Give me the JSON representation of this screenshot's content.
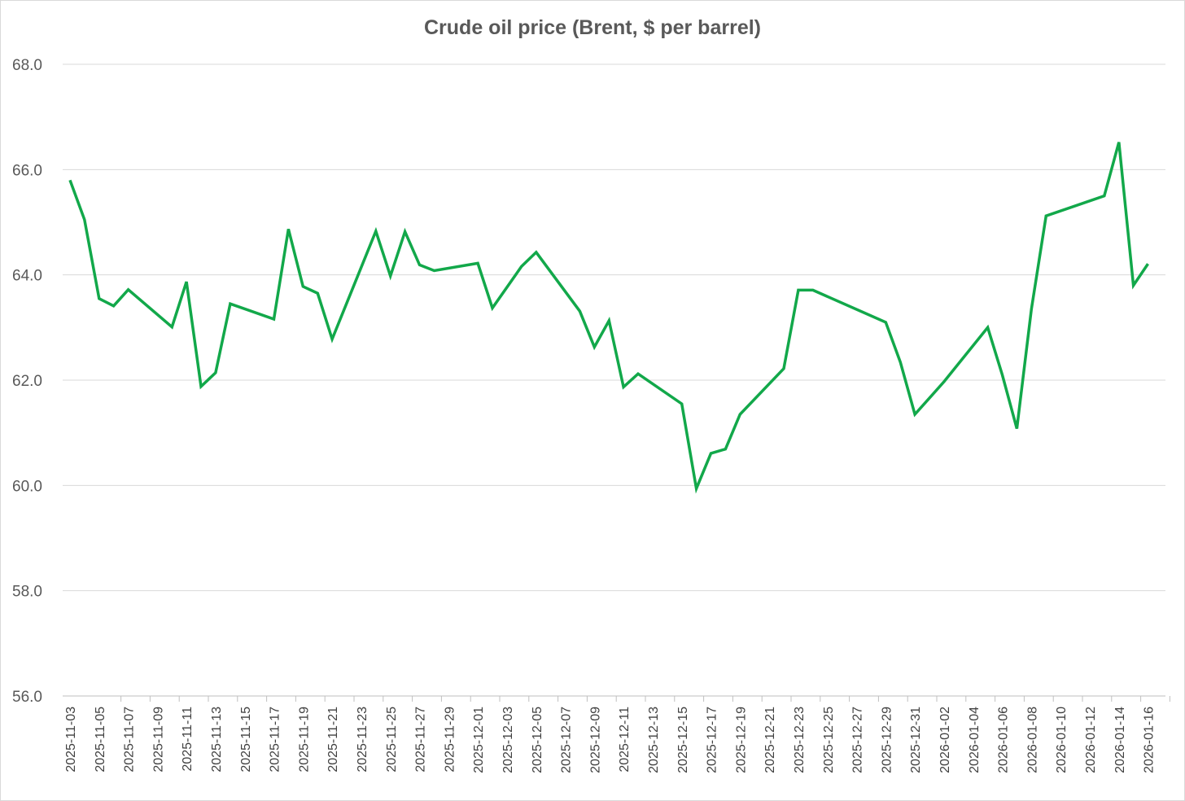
{
  "chart_data": {
    "type": "line",
    "title": "Crude oil price (Brent, $ per barrel)",
    "xlabel": "",
    "ylabel": "",
    "ylim": [
      56.0,
      68.0
    ],
    "y_ticks": [
      "56.0",
      "58.0",
      "60.0",
      "62.0",
      "64.0",
      "66.0",
      "68.0"
    ],
    "x_tick_labels": [
      "2025-11-03",
      "2025-11-05",
      "2025-11-07",
      "2025-11-09",
      "2025-11-11",
      "2025-11-13",
      "2025-11-15",
      "2025-11-17",
      "2025-11-19",
      "2025-11-21",
      "2025-11-23",
      "2025-11-25",
      "2025-11-27",
      "2025-11-29",
      "2025-12-01",
      "2025-12-03",
      "2025-12-05",
      "2025-12-07",
      "2025-12-09",
      "2025-12-11",
      "2025-12-13",
      "2025-12-15",
      "2025-12-17",
      "2025-12-19",
      "2025-12-21",
      "2025-12-23",
      "2025-12-25",
      "2025-12-27",
      "2025-12-29",
      "2025-12-31",
      "2026-01-02",
      "2026-01-04",
      "2026-01-06",
      "2026-01-08",
      "2026-01-10",
      "2026-01-12",
      "2026-01-14",
      "2026-01-16"
    ],
    "grid": true,
    "legend": "none",
    "series": [
      {
        "color": "#12a84a",
        "points": [
          {
            "x": "2025-11-03",
            "y": 65.8
          },
          {
            "x": "2025-11-04",
            "y": 65.05
          },
          {
            "x": "2025-11-05",
            "y": 63.55
          },
          {
            "x": "2025-11-06",
            "y": 63.41
          },
          {
            "x": "2025-11-07",
            "y": 63.72
          },
          {
            "x": "2025-11-10",
            "y": 63.01
          },
          {
            "x": "2025-11-11",
            "y": 63.87
          },
          {
            "x": "2025-11-12",
            "y": 61.88
          },
          {
            "x": "2025-11-13",
            "y": 62.14
          },
          {
            "x": "2025-11-14",
            "y": 63.45
          },
          {
            "x": "2025-11-17",
            "y": 63.16
          },
          {
            "x": "2025-11-18",
            "y": 64.87
          },
          {
            "x": "2025-11-19",
            "y": 63.78
          },
          {
            "x": "2025-11-20",
            "y": 63.65
          },
          {
            "x": "2025-11-21",
            "y": 62.78
          },
          {
            "x": "2025-11-24",
            "y": 64.83
          },
          {
            "x": "2025-11-25",
            "y": 63.98
          },
          {
            "x": "2025-11-26",
            "y": 64.82
          },
          {
            "x": "2025-11-27",
            "y": 64.19
          },
          {
            "x": "2025-11-28",
            "y": 64.08
          },
          {
            "x": "2025-12-01",
            "y": 64.22
          },
          {
            "x": "2025-12-02",
            "y": 63.37
          },
          {
            "x": "2025-12-04",
            "y": 64.16
          },
          {
            "x": "2025-12-05",
            "y": 64.43
          },
          {
            "x": "2025-12-08",
            "y": 63.31
          },
          {
            "x": "2025-12-09",
            "y": 62.63
          },
          {
            "x": "2025-12-10",
            "y": 63.13
          },
          {
            "x": "2025-12-11",
            "y": 61.87
          },
          {
            "x": "2025-12-12",
            "y": 62.12
          },
          {
            "x": "2025-12-15",
            "y": 61.55
          },
          {
            "x": "2025-12-16",
            "y": 59.94
          },
          {
            "x": "2025-12-17",
            "y": 60.61
          },
          {
            "x": "2025-12-18",
            "y": 60.69
          },
          {
            "x": "2025-12-19",
            "y": 61.35
          },
          {
            "x": "2025-12-22",
            "y": 62.22
          },
          {
            "x": "2025-12-23",
            "y": 63.71
          },
          {
            "x": "2025-12-24",
            "y": 63.71
          },
          {
            "x": "2025-12-29",
            "y": 63.1
          },
          {
            "x": "2025-12-30",
            "y": 62.34
          },
          {
            "x": "2025-12-31",
            "y": 61.35
          },
          {
            "x": "2026-01-02",
            "y": 61.97
          },
          {
            "x": "2026-01-05",
            "y": 63.0
          },
          {
            "x": "2026-01-06",
            "y": 62.1
          },
          {
            "x": "2026-01-07",
            "y": 61.08
          },
          {
            "x": "2026-01-08",
            "y": 63.35
          },
          {
            "x": "2026-01-09",
            "y": 65.12
          },
          {
            "x": "2026-01-13",
            "y": 65.5
          },
          {
            "x": "2026-01-14",
            "y": 66.52
          },
          {
            "x": "2026-01-15",
            "y": 63.8
          },
          {
            "x": "2026-01-16",
            "y": 64.21
          }
        ]
      }
    ]
  }
}
